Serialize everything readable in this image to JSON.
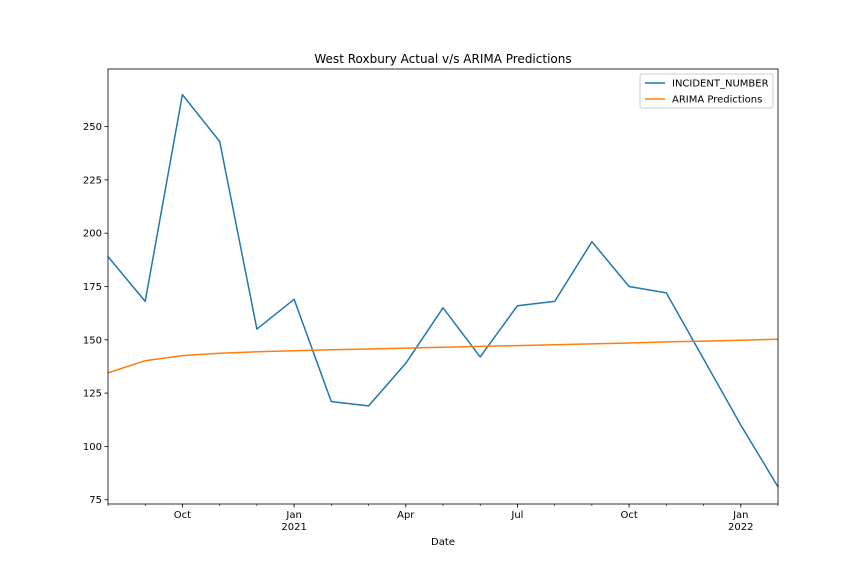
{
  "chart_data": {
    "type": "line",
    "title": "West Roxbury Actual v/s ARIMA Predictions",
    "xlabel": "Date",
    "ylabel": "",
    "x": [
      "2020-08",
      "2020-09",
      "2020-10",
      "2020-11",
      "2020-12",
      "2021-01",
      "2021-02",
      "2021-03",
      "2021-04",
      "2021-05",
      "2021-06",
      "2021-07",
      "2021-08",
      "2021-09",
      "2021-10",
      "2021-11",
      "2021-12",
      "2022-01",
      "2022-02"
    ],
    "xlim": [
      "2020-08",
      "2022-02"
    ],
    "ylim": [
      73,
      277
    ],
    "x_ticks_major": [
      {
        "x": "2020-10",
        "label": "Oct",
        "sublabel": ""
      },
      {
        "x": "2021-01",
        "label": "Jan",
        "sublabel": "2021"
      },
      {
        "x": "2021-04",
        "label": "Apr",
        "sublabel": ""
      },
      {
        "x": "2021-07",
        "label": "Jul",
        "sublabel": ""
      },
      {
        "x": "2021-10",
        "label": "Oct",
        "sublabel": ""
      },
      {
        "x": "2022-01",
        "label": "Jan",
        "sublabel": "2022"
      }
    ],
    "y_ticks": [
      75,
      100,
      125,
      150,
      175,
      200,
      225,
      250
    ],
    "grid": false,
    "legend_position": "top-right",
    "series": [
      {
        "name": "INCIDENT_NUMBER",
        "color": "#1f77b4",
        "values": [
          189,
          168,
          265,
          243,
          155,
          169,
          121,
          119,
          139,
          165,
          142,
          166,
          168,
          196,
          175,
          172,
          141,
          110,
          81
        ]
      },
      {
        "name": "ARIMA Predictions",
        "color": "#ff7f0e",
        "values": [
          134.5,
          140.2,
          142.6,
          143.7,
          144.4,
          144.9,
          145.3,
          145.7,
          146.1,
          146.5,
          146.9,
          147.3,
          147.7,
          148.1,
          148.5,
          149.0,
          149.4,
          149.8,
          150.3
        ]
      }
    ]
  }
}
